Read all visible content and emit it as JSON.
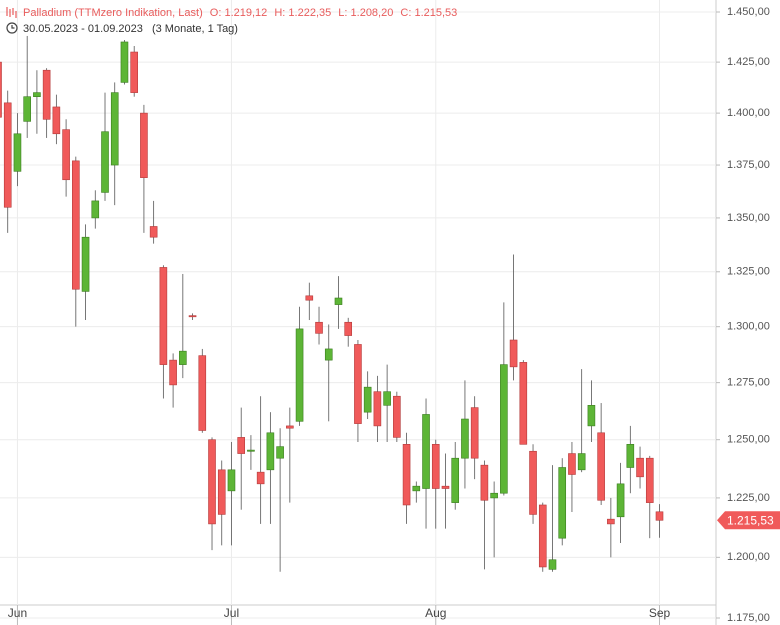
{
  "chart_data": {
    "type": "candlestick",
    "header": {
      "title": "Palladium (TTMzero Indikation, Last)",
      "open": "O: 1.219,12",
      "high": "H: 1.222,35",
      "low": "L: 1.208,20",
      "close": "C: 1.215,53",
      "range": "30.05.2023 - 01.09.2023",
      "period": "(3 Monate, 1 Tag)"
    },
    "categories": [
      null,
      null,
      "Jun",
      null,
      null,
      null,
      null,
      null,
      null,
      null,
      null,
      null,
      null,
      null,
      null,
      null,
      null,
      null,
      null,
      null,
      null,
      null,
      null,
      null,
      "Jul",
      null,
      null,
      null,
      null,
      null,
      null,
      null,
      null,
      null,
      null,
      null,
      null,
      null,
      null,
      null,
      null,
      null,
      null,
      null,
      null,
      "Aug",
      null,
      null,
      null,
      null,
      null,
      null,
      null,
      null,
      null,
      null,
      null,
      null,
      null,
      null,
      null,
      null,
      null,
      null,
      null,
      null,
      null,
      null,
      "Sep"
    ],
    "open": [
      1425,
      1405,
      1372,
      1396,
      1408,
      1421,
      1403,
      1392,
      1377,
      1316,
      1350,
      1362,
      1375,
      1415,
      1430,
      1400,
      1346,
      1327,
      1285,
      1283,
      1305,
      1287,
      1250,
      1237,
      1228,
      1251,
      1245,
      1236,
      1237,
      1242,
      1256,
      1258,
      1314,
      1302,
      1285,
      1310,
      1302,
      1292,
      1262,
      1271,
      1265,
      1269,
      1248,
      1228,
      1229,
      1248,
      1230,
      1223,
      1242,
      1264,
      1239,
      1225,
      1227,
      1294,
      1284,
      1245,
      1222,
      1195,
      1208,
      1244,
      1237,
      1256,
      1253,
      1216,
      1217,
      1238,
      1242,
      1242,
      1219.12
    ],
    "high": [
      1430,
      1411,
      1400,
      1438,
      1421,
      1422,
      1409,
      1397,
      1379,
      1347,
      1363,
      1410,
      1415,
      1436,
      1433,
      1404,
      1358,
      1328,
      1288,
      1324,
      1306,
      1290,
      1251,
      1241,
      1249,
      1264,
      1252,
      1269,
      1262,
      1255,
      1264,
      1309,
      1320,
      1309,
      1301,
      1323,
      1304,
      1294,
      1280,
      1278,
      1283,
      1271,
      1253,
      1232,
      1268,
      1250,
      1244,
      1249,
      1276,
      1269,
      1241,
      1232,
      1311,
      1333,
      1285,
      1248,
      1223,
      1239,
      1242,
      1249,
      1281,
      1276,
      1266,
      1225,
      1240,
      1256,
      1247,
      1243,
      1222.35
    ],
    "low": [
      1395,
      1343,
      1365,
      1388,
      1390,
      1388,
      1385,
      1360,
      1300,
      1303,
      1345,
      1358,
      1356,
      1414,
      1408,
      1343,
      1338,
      1268,
      1264,
      1277,
      1303,
      1253,
      1203,
      1205,
      1205,
      1220,
      1237,
      1214,
      1214,
      1194,
      1223,
      1256,
      1303,
      1292,
      1258,
      1299,
      1291,
      1249,
      1259,
      1249,
      1249,
      1249,
      1214,
      1223,
      1212,
      1212,
      1212,
      1220,
      1229,
      1233,
      1195,
      1200,
      1226,
      1276,
      1248,
      1214,
      1194,
      1194,
      1205,
      1219,
      1236,
      1249,
      1222,
      1200,
      1206,
      1227,
      1229,
      1208,
      1208.2
    ],
    "close": [
      1398,
      1355,
      1390,
      1408,
      1410,
      1397,
      1390,
      1368,
      1317,
      1341,
      1358,
      1391,
      1410,
      1435,
      1410,
      1369,
      1341,
      1283,
      1274,
      1289,
      1304.5,
      1254,
      1214,
      1218,
      1237,
      1244,
      1245.5,
      1231,
      1253,
      1247,
      1255,
      1299,
      1312,
      1297,
      1290,
      1313,
      1296,
      1257,
      1273,
      1256,
      1271,
      1251,
      1222,
      1230,
      1261,
      1229,
      1229,
      1242,
      1259,
      1242,
      1224,
      1227,
      1283,
      1282,
      1248,
      1218,
      1196,
      1199,
      1238,
      1235,
      1244,
      1265,
      1224,
      1214,
      1231,
      1248,
      1234,
      1223,
      1215.53
    ],
    "up_color": "#5db536",
    "down_color": "#f05a5a",
    "last_label": {
      "value": 1215.53,
      "label": "1.215,53"
    },
    "log_scale": true,
    "grid": true,
    "ylim": [
      1175,
      1450
    ],
    "yticks": [
      {
        "value": 1175,
        "label": "1.175,00"
      },
      {
        "value": 1200,
        "label": "1.200,00"
      },
      {
        "value": 1225,
        "label": "1.225,00"
      },
      {
        "value": 1250,
        "label": "1.250,00"
      },
      {
        "value": 1275,
        "label": "1.275,00"
      },
      {
        "value": 1300,
        "label": "1.300,00"
      },
      {
        "value": 1325,
        "label": "1.325,00"
      },
      {
        "value": 1350,
        "label": "1.350,00"
      },
      {
        "value": 1375,
        "label": "1.375,00"
      },
      {
        "value": 1400,
        "label": "1.400,00"
      },
      {
        "value": 1425,
        "label": "1.425,00"
      },
      {
        "value": 1450,
        "label": "1.450,00"
      }
    ]
  }
}
